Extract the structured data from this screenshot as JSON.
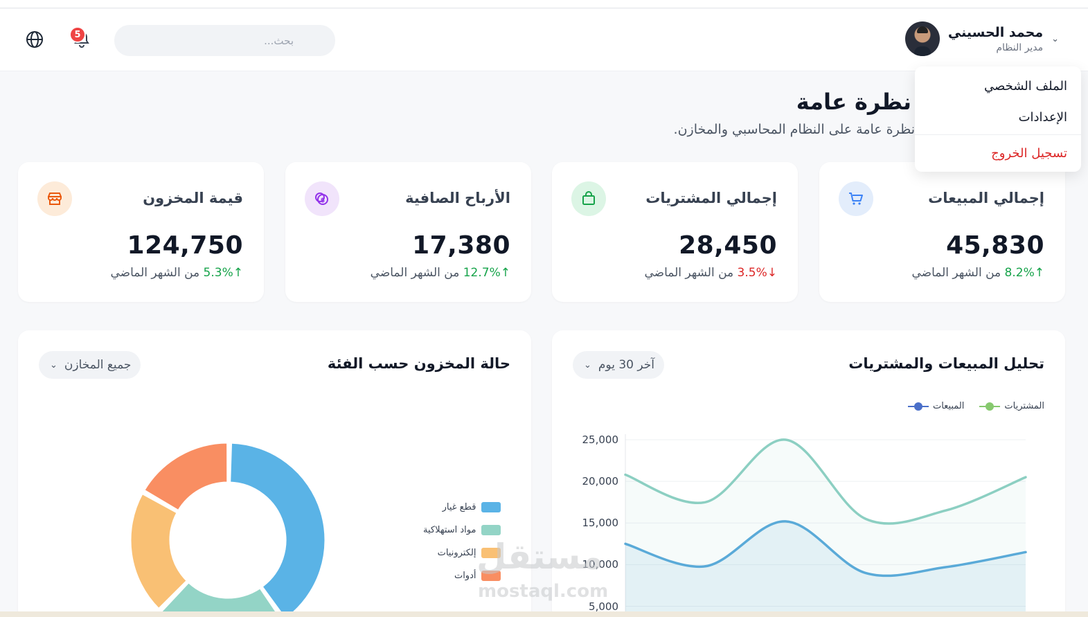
{
  "header": {
    "user_name": "محمد الحسيني",
    "user_role": "مدير النظام",
    "search_placeholder": "بحث...",
    "notification_count": "5"
  },
  "user_menu": {
    "profile": "الملف الشخصي",
    "settings": "الإعدادات",
    "logout": "تسجيل الخروج"
  },
  "page": {
    "title": "نظرة عامة",
    "subtitle": "نظرة عامة على النظام المحاسبي والمخازن."
  },
  "stats": [
    {
      "label": "إجمالي المبيعات",
      "value": "45,830",
      "trend": "up",
      "arrow": "↑",
      "pct": "8.2%",
      "suffix": "من الشهر الماضي",
      "icon": "cart-icon",
      "color": "#3b82f6",
      "bg": "#e3edfb"
    },
    {
      "label": "إجمالي المشتريات",
      "value": "28,450",
      "trend": "down",
      "arrow": "↓",
      "pct": "3.5%",
      "suffix": "من الشهر الماضي",
      "icon": "shopping-bag-icon",
      "color": "#16a34a",
      "bg": "#dcf5e5"
    },
    {
      "label": "الأرباح الصافية",
      "value": "17,380",
      "trend": "up",
      "arrow": "↑",
      "pct": "12.7%",
      "suffix": "من الشهر الماضي",
      "icon": "coins-icon",
      "color": "#9333ea",
      "bg": "#f1e4fb"
    },
    {
      "label": "قيمة المخزون",
      "value": "124,750",
      "trend": "up",
      "arrow": "↑",
      "pct": "5.3%",
      "suffix": "من الشهر الماضي",
      "icon": "store-icon",
      "color": "#ea580c",
      "bg": "#fdebd9"
    }
  ],
  "sales_panel": {
    "title": "تحليل المبيعات والمشتريات",
    "filter": "آخر 30 يوم"
  },
  "inventory_panel": {
    "title": "حالة المخزون حسب الفئة",
    "filter": "جميع المخازن"
  },
  "chart_data": [
    {
      "type": "line",
      "title": "",
      "xlabel": "",
      "ylabel": "",
      "ylim": [
        5000,
        25000
      ],
      "yticks": [
        "25,000",
        "20,000",
        "15,000",
        "10,000",
        "5,000"
      ],
      "ytick_values": [
        25000,
        20000,
        15000,
        10000,
        5000
      ],
      "x": [
        1,
        2,
        3,
        4,
        5,
        6
      ],
      "series": [
        {
          "name": "المشتريات",
          "color": "#8ccfc2",
          "legend_color": "#86c96e",
          "values": [
            20800,
            17500,
            25000,
            15500,
            16500,
            20500
          ]
        },
        {
          "name": "المبيعات",
          "color": "#5aaad8",
          "legend_color": "#4a6fc9",
          "values": [
            12500,
            9800,
            15200,
            9000,
            9700,
            11500
          ]
        }
      ],
      "legend_position": "top-right",
      "grid": true
    },
    {
      "type": "pie",
      "donut": true,
      "categories": [
        "قطع غيار",
        "مواد استهلاكية",
        "إلكترونيات",
        "أدوات"
      ],
      "values": [
        40,
        22,
        21,
        17
      ],
      "colors": [
        "#5ab3e6",
        "#93d4c6",
        "#f9c074",
        "#f98e62"
      ],
      "legend_position": "right"
    }
  ],
  "watermark": {
    "arabic": "مستقل",
    "latin": "mostaql.com"
  }
}
